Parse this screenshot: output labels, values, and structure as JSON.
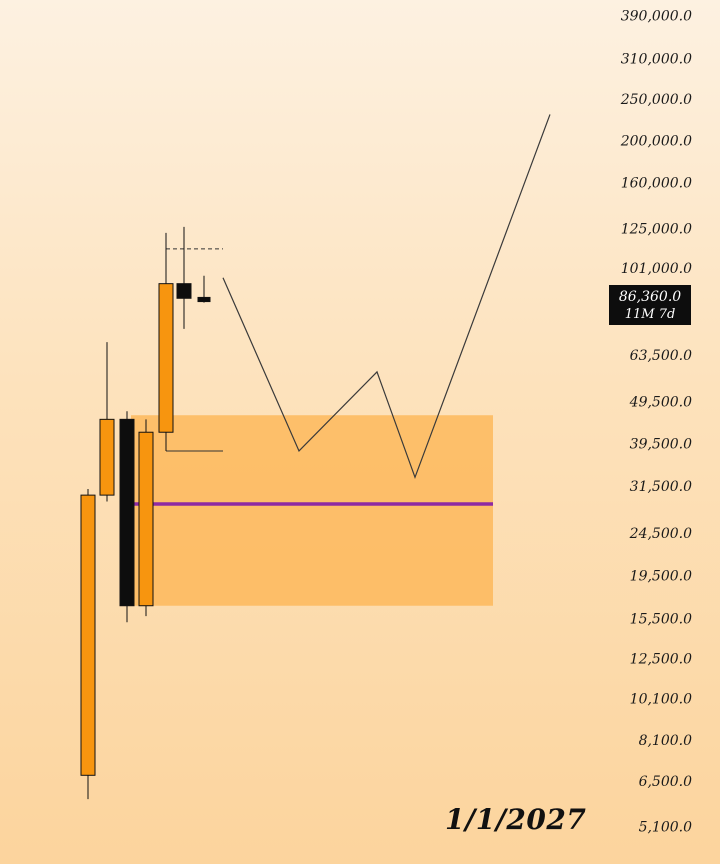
{
  "chart_data": {
    "type": "candlestick",
    "y_scale": "log",
    "ylim": [
      5000,
      400000
    ],
    "axis_ticks": [
      "390,000.0",
      "310,000.0",
      "250,000.0",
      "200,000.0",
      "160,000.0",
      "125,000.0",
      "101,000.0",
      "63,500.0",
      "49,500.0",
      "39,500.0",
      "31,500.0",
      "24,500.0",
      "19,500.0",
      "15,500.0",
      "12,500.0",
      "10,100.0",
      "8,100.0",
      "6,500.0",
      "5,100.0"
    ],
    "axis_tick_values": [
      390000,
      310000,
      250000,
      200000,
      160000,
      125000,
      101000,
      63500,
      49500,
      39500,
      31500,
      24500,
      19500,
      15500,
      12500,
      10100,
      8100,
      6500,
      5100
    ],
    "candles": [
      {
        "open": 6700,
        "high": 31000,
        "low": 5900,
        "close": 30000,
        "color": "#f7950f"
      },
      {
        "open": 30000,
        "high": 68000,
        "low": 29000,
        "close": 45000,
        "color": "#f7950f"
      },
      {
        "open": 45000,
        "high": 47000,
        "low": 15200,
        "close": 16600,
        "color": "#0d0d0d"
      },
      {
        "open": 16600,
        "high": 45000,
        "low": 15700,
        "close": 42000,
        "color": "#f7950f"
      },
      {
        "open": 42000,
        "high": 122000,
        "low": 38000,
        "close": 93000,
        "color": "#f7950f"
      },
      {
        "open": 93000,
        "high": 126000,
        "low": 73000,
        "close": 86000,
        "color": "#0d0d0d"
      },
      {
        "open": 86400,
        "high": 97000,
        "low": 84000,
        "close": 84500,
        "color": "#0d0d0d"
      }
    ],
    "zone": {
      "top": 46000,
      "bottom": 16600,
      "color": "#fdb95c"
    },
    "midline": {
      "value": 28600,
      "color": "#8e2aa3"
    },
    "range_lines": {
      "high": 112000,
      "low": 38000
    },
    "projection_path": [
      96000,
      38000,
      58000,
      33000,
      230000
    ],
    "current_price": "86,360.0",
    "timeframe_countdown": "11M 7d",
    "date_label": "1/1/2027"
  }
}
